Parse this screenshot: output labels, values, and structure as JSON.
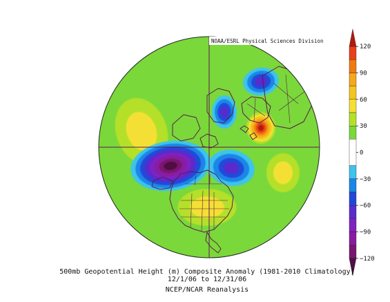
{
  "credit": "NOAA/ESRL Physical Sciences Division",
  "map": {
    "projection": "north polar stereographic",
    "boundaries_color": "#5a1a4a"
  },
  "colorbar": {
    "ticks": [
      {
        "value": 120,
        "label": "120"
      },
      {
        "value": 90,
        "label": "90"
      },
      {
        "value": 60,
        "label": "60"
      },
      {
        "value": 30,
        "label": "30"
      },
      {
        "value": 0,
        "label": "0"
      },
      {
        "value": -30,
        "label": "−30"
      },
      {
        "value": -60,
        "label": "−60"
      },
      {
        "value": -90,
        "label": "−90"
      },
      {
        "value": -120,
        "label": "−120"
      }
    ],
    "bands": [
      {
        "from": 120,
        "to": 135,
        "color": "#b01a10"
      },
      {
        "from": 105,
        "to": 120,
        "color": "#e8401a"
      },
      {
        "from": 90,
        "to": 105,
        "color": "#f07a10"
      },
      {
        "from": 75,
        "to": 90,
        "color": "#f4a81a"
      },
      {
        "from": 60,
        "to": 75,
        "color": "#f2c61e"
      },
      {
        "from": 45,
        "to": 60,
        "color": "#f4e034"
      },
      {
        "from": 30,
        "to": 45,
        "color": "#b4e02a"
      },
      {
        "from": 15,
        "to": 30,
        "color": "#7ad83a"
      },
      {
        "from": -15,
        "to": 15,
        "color": "#ffffff"
      },
      {
        "from": -30,
        "to": -15,
        "color": "#3ec4ec"
      },
      {
        "from": -45,
        "to": -30,
        "color": "#1a86e8"
      },
      {
        "from": -60,
        "to": -45,
        "color": "#2048d8"
      },
      {
        "from": -75,
        "to": -60,
        "color": "#5a2ccc"
      },
      {
        "from": -90,
        "to": -75,
        "color": "#7e24c0"
      },
      {
        "from": -105,
        "to": -90,
        "color": "#8a1aa0"
      },
      {
        "from": -120,
        "to": -105,
        "color": "#7a1670"
      },
      {
        "from": -135,
        "to": -120,
        "color": "#501040"
      }
    ]
  },
  "anomaly_field": {
    "background_value": 22,
    "features": [
      {
        "name": "North Pacific / Aleutian low",
        "value": -128
      },
      {
        "name": "Pacific ridge",
        "value": 52
      },
      {
        "name": "Greenland / Arctic Canada low",
        "value": -70
      },
      {
        "name": "Barents-Kara low",
        "value": -72
      },
      {
        "name": "Siberian high",
        "value": 125
      },
      {
        "name": "Eastern Canada low",
        "value": -62
      },
      {
        "name": "Western Atlantic ridge",
        "value": 58
      },
      {
        "name": "Southeast US ridge",
        "value": 48
      }
    ]
  },
  "caption": {
    "line1": "500mb Geopotential Height (m) Composite Anomaly (1981-2010 Climatology)",
    "line2": "12/1/06 to 12/31/06",
    "line3": "NCEP/NCAR Reanalysis"
  }
}
